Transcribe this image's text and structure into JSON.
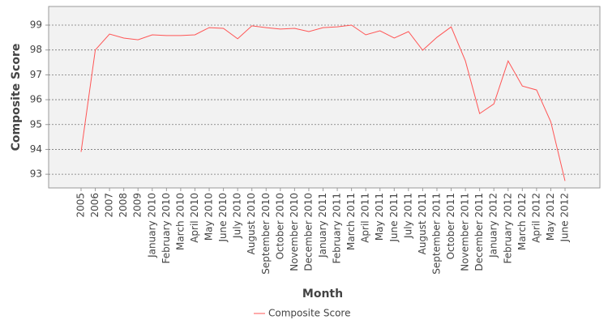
{
  "chart_data": {
    "type": "line",
    "x_label": "Month",
    "y_label": "Composite Score",
    "categories": [
      "2005",
      "2006",
      "2007",
      "2008",
      "2009",
      "January 2010",
      "February 2010",
      "March 2010",
      "April 2010",
      "May 2010",
      "June 2010",
      "July 2010",
      "August 2010",
      "September 2010",
      "October 2010",
      "November 2010",
      "December 2010",
      "January 2011",
      "February 2011",
      "March 2011",
      "April 2011",
      "May 2011",
      "June 2011",
      "July 2011",
      "August 2011",
      "September 2011",
      "October 2011",
      "November 2011",
      "December 2011",
      "January 2012",
      "February 2012",
      "March 2012",
      "April 2012",
      "May 2012",
      "June 2012"
    ],
    "series": [
      {
        "name": "Composite Score",
        "color": "#ff5555",
        "values": [
          93.9,
          98.0,
          98.64,
          98.48,
          98.41,
          98.61,
          98.58,
          98.58,
          98.61,
          98.9,
          98.87,
          98.45,
          98.97,
          98.9,
          98.84,
          98.87,
          98.74,
          98.9,
          98.93,
          99.0,
          98.61,
          98.77,
          98.48,
          98.74,
          97.99,
          98.51,
          98.93,
          97.56,
          95.44,
          95.83,
          97.56,
          96.55,
          96.39,
          95.11,
          92.73
        ]
      }
    ],
    "ylim": [
      92.45,
      99.75
    ],
    "yticks": [
      93,
      94,
      95,
      96,
      97,
      98,
      99
    ],
    "grid": true,
    "legend": "bottom"
  }
}
